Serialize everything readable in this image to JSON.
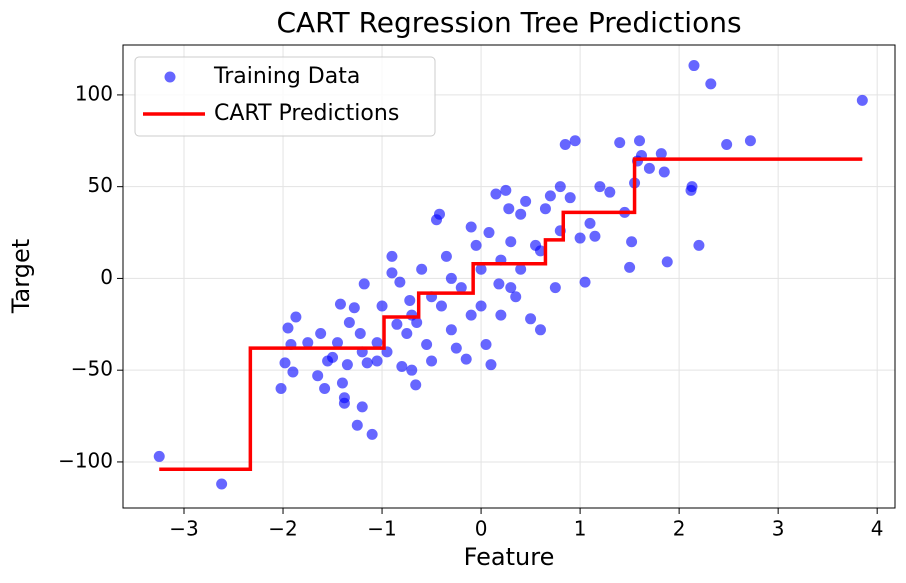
{
  "chart_data": {
    "type": "scatter",
    "title": "CART Regression Tree Predictions",
    "x_label": "Feature",
    "y_label": "Target",
    "xlim": [
      -3.616,
      4.18
    ],
    "ylim": [
      -125.1,
      127.2
    ],
    "xticks": [
      {
        "value": -3,
        "label": "−3"
      },
      {
        "value": -2,
        "label": "−2"
      },
      {
        "value": -1,
        "label": "−1"
      },
      0,
      1,
      2,
      3,
      4
    ],
    "yticks": [
      {
        "value": -100,
        "label": "−100"
      },
      {
        "value": -50,
        "label": "−50"
      },
      0,
      50,
      100
    ],
    "grid": true,
    "legend": "upper left",
    "series": [
      {
        "name": "Training Data",
        "type": "scatter",
        "color": "#0000ff",
        "x": [
          -3.25,
          -2.62,
          -2.02,
          -1.98,
          -1.95,
          -1.92,
          -1.9,
          -1.87,
          -1.75,
          -1.65,
          -1.62,
          -1.58,
          -1.55,
          -1.5,
          -1.45,
          -1.42,
          -1.4,
          -1.38,
          -1.38,
          -1.35,
          -1.33,
          -1.28,
          -1.25,
          -1.2,
          -1.22,
          -1.2,
          -1.18,
          -1.15,
          -1.1,
          -1.05,
          -1.05,
          -1,
          -0.95,
          -0.9,
          -0.9,
          -0.85,
          -0.82,
          -0.8,
          -0.75,
          -0.72,
          -0.7,
          -0.66,
          -0.65,
          -0.6,
          -0.55,
          -0.5,
          -0.45,
          -0.42,
          -0.4,
          -0.35,
          -0.3,
          -0.25,
          -0.2,
          -0.15,
          -0.1,
          -0.05,
          0,
          0.05,
          0.08,
          0.1,
          0.15,
          0.18,
          0.2,
          0.25,
          0.28,
          0.3,
          0.35,
          0.4,
          0.45,
          0.5,
          0.55,
          0.6,
          0.65,
          0.7,
          0.75,
          0.8,
          0.85,
          0.9,
          0.95,
          1.0,
          1.05,
          1.1,
          1.15,
          1.2,
          1.3,
          1.4,
          1.45,
          1.5,
          1.52,
          1.55,
          1.58,
          1.6,
          1.62,
          1.7,
          1.82,
          1.85,
          1.88,
          2.12,
          2.13,
          2.15,
          2.2,
          2.32,
          2.48,
          2.72,
          3.85,
          -0.3,
          0.2,
          0.4,
          -0.1,
          0.6,
          0.3,
          -0.5,
          0.0,
          0.8,
          -0.7
        ],
        "values": [
          -97,
          -112,
          -60,
          -46,
          -27,
          -36,
          -51,
          -21,
          -35,
          -53,
          -30,
          -60,
          -45,
          -43,
          -35,
          -14,
          -57,
          -68,
          -65,
          -47,
          -24,
          -16,
          -80,
          -70,
          -30,
          -40,
          -3,
          -46,
          -85,
          -45,
          -35,
          -15,
          -40,
          3,
          12,
          -25,
          -2,
          -48,
          -30,
          -12,
          -50,
          -58,
          -24,
          5,
          -36,
          -45,
          32,
          35,
          -15,
          12,
          -28,
          -38,
          -5,
          -44,
          28,
          18,
          -15,
          -36,
          25,
          -47,
          46,
          -3,
          -20,
          48,
          38,
          20,
          -10,
          35,
          42,
          -22,
          18,
          -28,
          38,
          45,
          -5,
          50,
          73,
          44,
          75,
          22,
          -2,
          30,
          23,
          50,
          47,
          74,
          36,
          6,
          20,
          52,
          64,
          75,
          67,
          60,
          68,
          58,
          9,
          48,
          50,
          116,
          18,
          106,
          73,
          75,
          97,
          0,
          10,
          5,
          -20,
          15,
          -5,
          -10,
          5,
          26,
          -20
        ]
      },
      {
        "name": "CART Predictions",
        "type": "line",
        "color": "#ff0000",
        "x": [
          -3.25,
          -2.33,
          -2.33,
          -0.98,
          -0.98,
          -0.63,
          -0.63,
          -0.08,
          -0.08,
          0.65,
          0.65,
          0.83,
          0.83,
          1.55,
          1.55,
          3.85
        ],
        "values": [
          -104,
          -104,
          -38,
          -38,
          -21,
          -21,
          -8,
          -8,
          8,
          8,
          21,
          21,
          36,
          36,
          65,
          65
        ]
      }
    ]
  }
}
